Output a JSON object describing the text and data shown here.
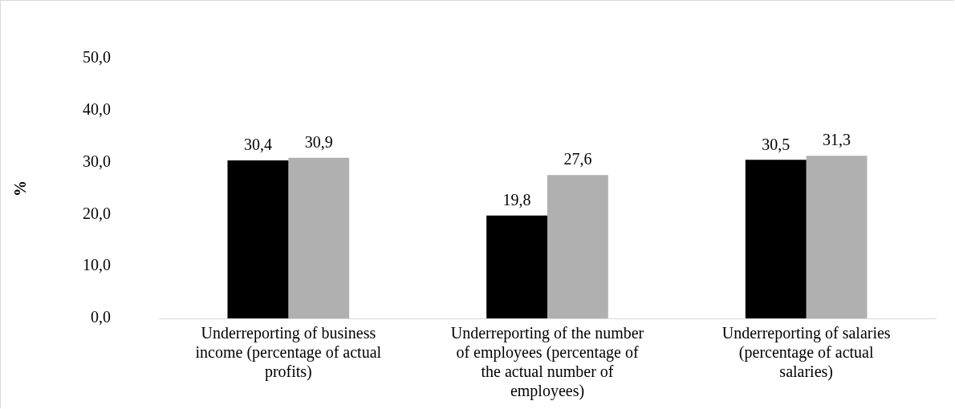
{
  "chart_data": {
    "type": "bar",
    "ylabel": "%",
    "categories": [
      "Underreporting of business income (percentage of actual profits)",
      "Underreporting of the number of employees (percentage of the actual number of employees)",
      "Underreporting of salaries (percentage of actual salaries)"
    ],
    "series": [
      {
        "color": "#000000",
        "values": [
          30.4,
          19.8,
          30.5
        ],
        "value_labels": [
          "30,4",
          "19,8",
          "30,5"
        ]
      },
      {
        "color": "#b0b0b0",
        "values": [
          30.9,
          27.6,
          31.3
        ],
        "value_labels": [
          "30,9",
          "27,6",
          "31,3"
        ]
      }
    ],
    "ylim": [
      0,
      50
    ],
    "yticks": [
      {
        "value": 0,
        "label": "0,0"
      },
      {
        "value": 10,
        "label": "10,0"
      },
      {
        "value": 20,
        "label": "20,0"
      },
      {
        "value": 30,
        "label": "30,0"
      },
      {
        "value": 40,
        "label": "40,0"
      },
      {
        "value": 50,
        "label": "50,0"
      }
    ],
    "grid": false,
    "legend": false
  }
}
